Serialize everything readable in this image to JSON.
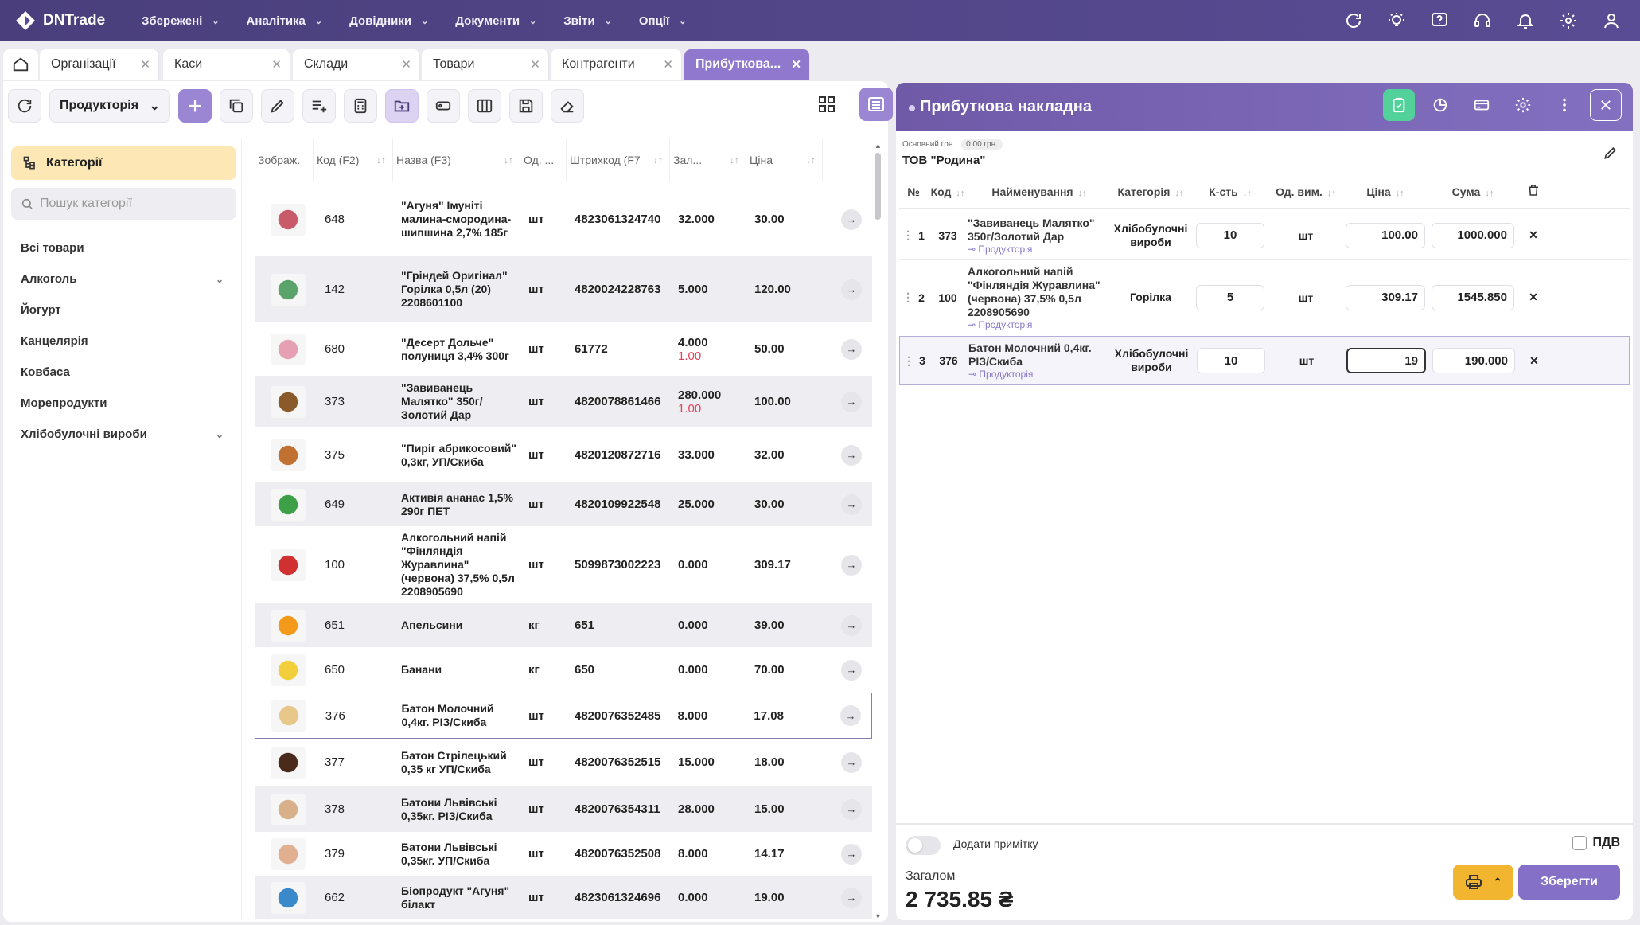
{
  "app": {
    "logo_text": "DNTrade"
  },
  "menu": [
    {
      "label": "Збережені"
    },
    {
      "label": "Аналітика"
    },
    {
      "label": "Довідники"
    },
    {
      "label": "Документи"
    },
    {
      "label": "Звіти"
    },
    {
      "label": "Опції"
    }
  ],
  "top_icons": [
    "refresh-icon",
    "lightbulb-icon",
    "help-icon",
    "headset-icon",
    "bell-icon",
    "gear-icon",
    "user-icon"
  ],
  "tabs": [
    {
      "label": "Організації"
    },
    {
      "label": "Каси"
    },
    {
      "label": "Склади"
    },
    {
      "label": "Товари"
    },
    {
      "label": "Контрагенти"
    },
    {
      "label": "Прибуткова..."
    }
  ],
  "toolbar": {
    "org_select": "Продукторія"
  },
  "categories": {
    "header": "Категорії",
    "search_placeholder": "Пошук категорії",
    "items": [
      {
        "label": "Всі товари",
        "expandable": false
      },
      {
        "label": "Алкоголь",
        "expandable": true
      },
      {
        "label": "Йогурт",
        "expandable": false
      },
      {
        "label": "Канцелярія",
        "expandable": false
      },
      {
        "label": "Ковбаса",
        "expandable": false
      },
      {
        "label": "Морепродукти",
        "expandable": false
      },
      {
        "label": "Хлібобулочні вироби",
        "expandable": true
      }
    ]
  },
  "products": {
    "columns": [
      "Зображ.",
      "Код (F2)",
      "Назва (F3)",
      "Од. ...",
      "Штрихкод (F7",
      "Зал...",
      "Ціна"
    ],
    "rows": [
      {
        "code": "648",
        "name": "\"Агуня\" Імуніті малина-смородина-шипшина 2,7% 185г",
        "unit": "шт",
        "barcode": "4823061324740",
        "stock": "32.000",
        "stock2": "",
        "price": "30.00"
      },
      {
        "code": "142",
        "name": "\"Гріндей Оригінал\" Горілка 0,5л (20) 2208601100",
        "unit": "шт",
        "barcode": "4820024228763",
        "stock": "5.000",
        "stock2": "",
        "price": "120.00"
      },
      {
        "code": "680",
        "name": "\"Десерт Дольче\" полуниця 3,4% 300г",
        "unit": "шт",
        "barcode": "61772",
        "stock": "4.000",
        "stock2": "1.00",
        "price": "50.00"
      },
      {
        "code": "373",
        "name": "\"Завиванець Малятко\" 350г/ Золотий Дар",
        "unit": "шт",
        "barcode": "4820078861466",
        "stock": "280.000",
        "stock2": "1.00",
        "price": "100.00"
      },
      {
        "code": "375",
        "name": "\"Пиріг абрикосовий\" 0,3кг, УП/Скиба",
        "unit": "шт",
        "barcode": "4820120872716",
        "stock": "33.000",
        "stock2": "",
        "price": "32.00"
      },
      {
        "code": "649",
        "name": "Активія ананас 1,5% 290г ПЕТ",
        "unit": "шт",
        "barcode": "4820109922548",
        "stock": "25.000",
        "stock2": "",
        "price": "30.00"
      },
      {
        "code": "100",
        "name": "Алкогольний напій \"Фінляндія Журавлина\" (червона) 37,5% 0,5л 2208905690",
        "unit": "шт",
        "barcode": "5099873002223",
        "stock": "0.000",
        "stock2": "",
        "price": "309.17"
      },
      {
        "code": "651",
        "name": "Апельсини",
        "unit": "кг",
        "barcode": "651",
        "stock": "0.000",
        "stock2": "",
        "price": "39.00"
      },
      {
        "code": "650",
        "name": "Банани",
        "unit": "кг",
        "barcode": "650",
        "stock": "0.000",
        "stock2": "",
        "price": "70.00"
      },
      {
        "code": "376",
        "name": "Батон Молочний 0,4кг. РІЗ/Скиба",
        "unit": "шт",
        "barcode": "4820076352485",
        "stock": "8.000",
        "stock2": "",
        "price": "17.08"
      },
      {
        "code": "377",
        "name": "Батон Стрілецький 0,35 кг УП/Скиба",
        "unit": "шт",
        "barcode": "4820076352515",
        "stock": "15.000",
        "stock2": "",
        "price": "18.00"
      },
      {
        "code": "378",
        "name": "Батони Львівські 0,35кг. РІЗ/Скиба",
        "unit": "шт",
        "barcode": "4820076354311",
        "stock": "28.000",
        "stock2": "",
        "price": "15.00"
      },
      {
        "code": "379",
        "name": "Батони Львівські 0,35кг. УП/Скиба",
        "unit": "шт",
        "barcode": "4820076352508",
        "stock": "8.000",
        "stock2": "",
        "price": "14.17"
      },
      {
        "code": "662",
        "name": "Біопродукт \"Агуня\" білакт",
        "unit": "шт",
        "barcode": "4823061324696",
        "stock": "0.000",
        "stock2": "",
        "price": "19.00"
      }
    ]
  },
  "document": {
    "title": "Прибуткова накладна",
    "org_label": "Основний грн.",
    "org_amount": "0.00 грн.",
    "org_name": "ТОВ \"Родина\"",
    "columns": [
      "№",
      "Код",
      "Найменування",
      "Категорія",
      "К-сть",
      "Од. вим.",
      "Ціна",
      "Сума"
    ],
    "rows": [
      {
        "n": "1",
        "code": "373",
        "name": "\"Завиванець Малятко\" 350г/Золотий Дар",
        "store": "Продукторія",
        "category": "Хлібобулочні вироби",
        "qty": "10",
        "unit": "шт",
        "price": "100.00",
        "sum": "1000.000"
      },
      {
        "n": "2",
        "code": "100",
        "name": "Алкогольний напій \"Фінляндія Журавлина\" (червона) 37,5% 0,5л 2208905690",
        "store": "Продукторія",
        "category": "Горілка",
        "qty": "5",
        "unit": "шт",
        "price": "309.17",
        "sum": "1545.850"
      },
      {
        "n": "3",
        "code": "376",
        "name": "Батон Молочний 0,4кг. РІЗ/Скиба",
        "store": "Продукторія",
        "category": "Хлібобулочні вироби",
        "qty": "10",
        "unit": "шт",
        "price": "19",
        "sum": "190.000"
      }
    ],
    "note_label": "Додати примітку",
    "vat_label": "ПДВ",
    "total_label": "Загалом",
    "total_value": "2 735.85 ₴",
    "save_label": "Зберегти"
  },
  "colors": {
    "header": "#4a3f7c",
    "accent": "#8570c8",
    "category_highlight": "#fde7b4",
    "save_green": "#53d19b",
    "print_yellow": "#f2b530"
  }
}
